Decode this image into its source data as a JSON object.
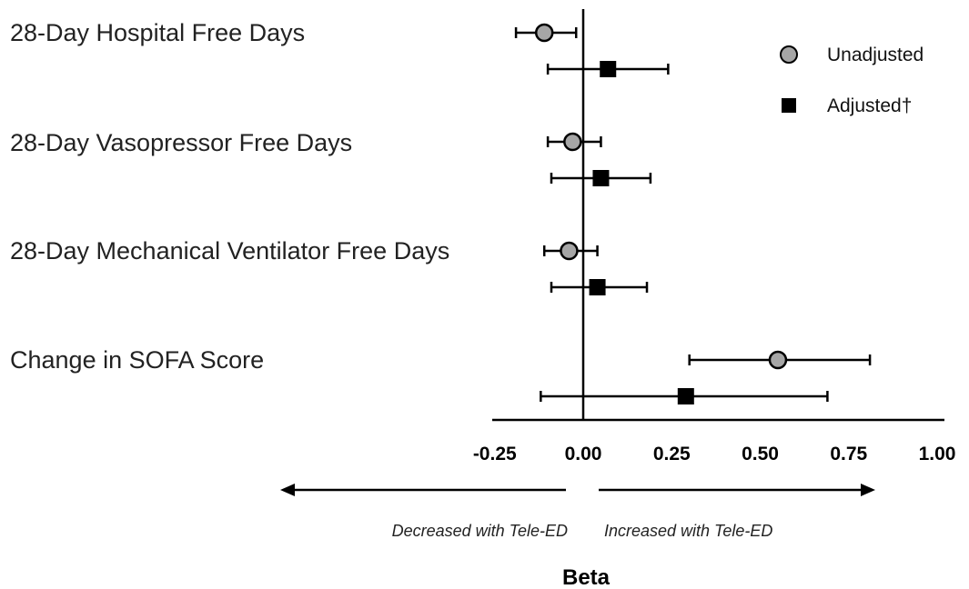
{
  "chart_data": {
    "type": "forest",
    "xlabel": "Beta",
    "xlim": [
      -0.25,
      1.0
    ],
    "xticks": [
      "-0.25",
      "0.00",
      "0.25",
      "0.50",
      "0.75",
      "1.00"
    ],
    "tick_values": [
      -0.25,
      0,
      0.25,
      0.5,
      0.75,
      1.0
    ],
    "reference_line": 0,
    "direction_labels": {
      "left": "Decreased with Tele-ED",
      "right": "Increased with Tele-ED"
    },
    "legend": {
      "placement": "top-right",
      "entries": [
        {
          "name": "Unadjusted",
          "marker": "circle",
          "color": "#a6a6a6"
        },
        {
          "name": "Adjusted†",
          "marker": "square",
          "color": "#000000"
        }
      ]
    },
    "categories": [
      "28-Day Hospital Free Days",
      "28-Day Vasopressor Free Days",
      "28-Day Mechanical Ventilator Free Days",
      "Change in SOFA Score"
    ],
    "series": [
      {
        "name": "Unadjusted",
        "estimates": [
          -0.11,
          -0.03,
          -0.04,
          0.55
        ],
        "ci_low": [
          -0.19,
          -0.1,
          -0.11,
          0.3
        ],
        "ci_high": [
          -0.02,
          0.05,
          0.04,
          0.81
        ]
      },
      {
        "name": "Adjusted†",
        "estimates": [
          0.07,
          0.05,
          0.04,
          0.29
        ],
        "ci_low": [
          -0.1,
          -0.09,
          -0.09,
          -0.12
        ],
        "ci_high": [
          0.24,
          0.19,
          0.18,
          0.69
        ]
      }
    ]
  }
}
